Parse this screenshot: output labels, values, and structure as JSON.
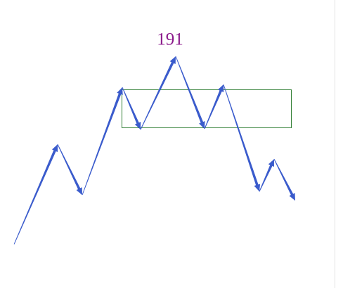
{
  "label": "191"
}
